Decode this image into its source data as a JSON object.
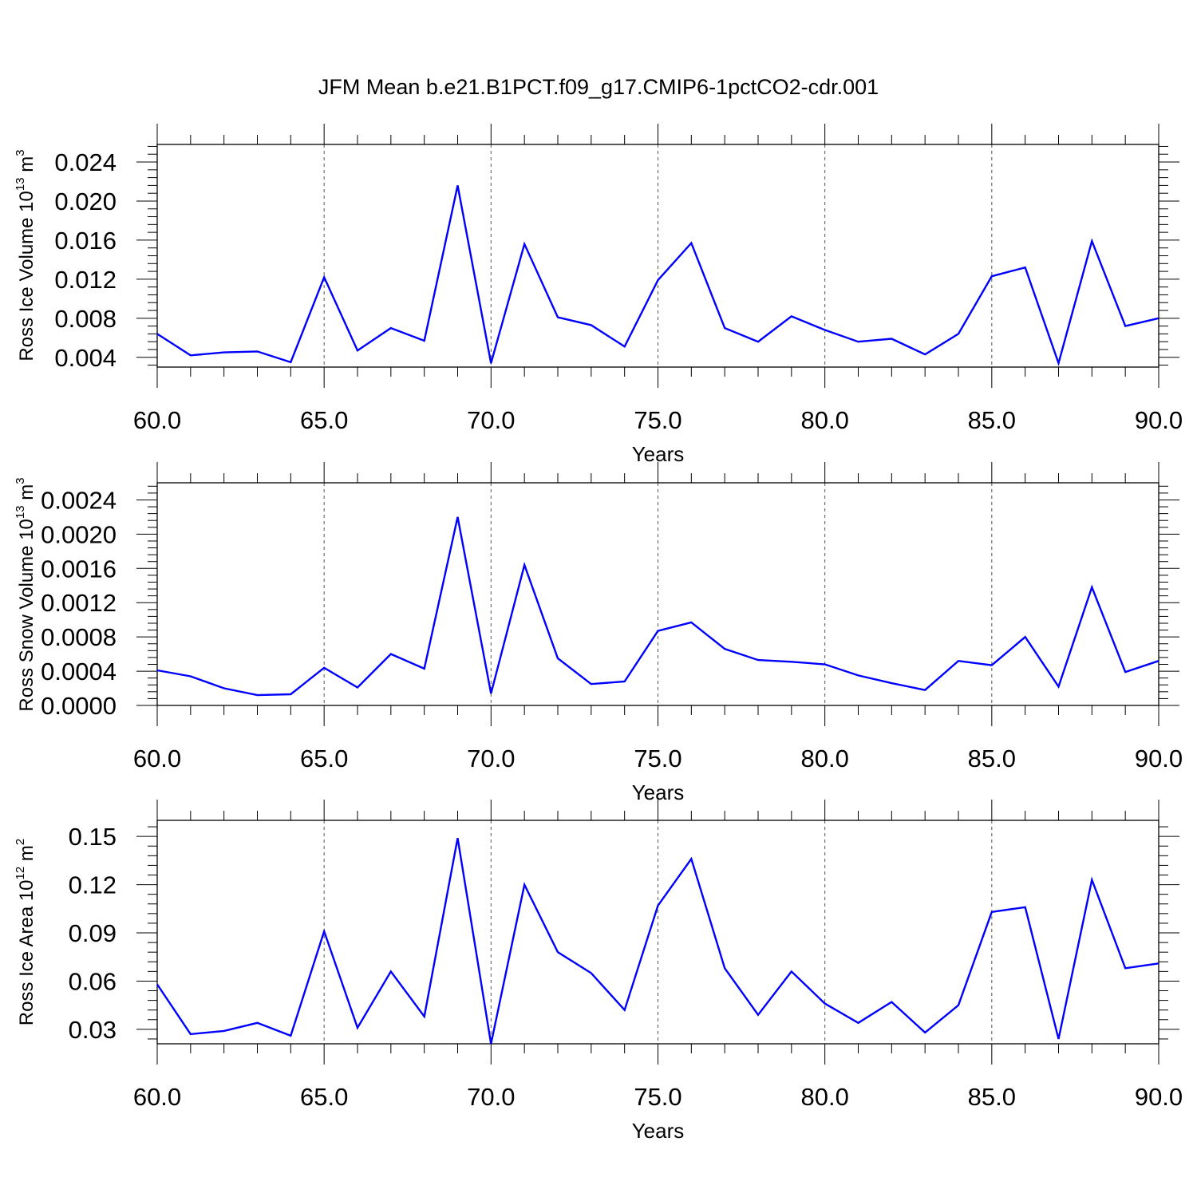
{
  "title": "JFM Mean b.e21.B1PCT.f09_g17.CMIP6-1pctCO2-cdr.001",
  "chart_data": [
    {
      "type": "line",
      "xlabel": "Years",
      "ylabel": "Ross Ice Volume 10",
      "ylabel_exp": "13",
      "ylabel_unit": "m",
      "ylabel_unit_exp": "3",
      "xlim": [
        60,
        90
      ],
      "ylim": [
        0.003,
        0.0258
      ],
      "x_ticks": [
        "60.0",
        "65.0",
        "70.0",
        "75.0",
        "80.0",
        "85.0",
        "90.0"
      ],
      "y_ticks": [
        "0.004",
        "0.008",
        "0.012",
        "0.016",
        "0.020",
        "0.024"
      ],
      "grid": "vertical dashed at x ticks",
      "color": "#0000ff",
      "x": [
        60,
        61,
        62,
        63,
        64,
        65,
        66,
        67,
        68,
        69,
        70,
        71,
        72,
        73,
        74,
        75,
        76,
        77,
        78,
        79,
        80,
        81,
        82,
        83,
        84,
        85,
        86,
        87,
        88,
        89,
        90
      ],
      "values": [
        0.0064,
        0.0042,
        0.0045,
        0.0046,
        0.0035,
        0.0122,
        0.0047,
        0.007,
        0.0057,
        0.0216,
        0.0034,
        0.0156,
        0.0081,
        0.0073,
        0.0051,
        0.0119,
        0.0157,
        0.007,
        0.0056,
        0.0082,
        0.0068,
        0.0056,
        0.0059,
        0.0043,
        0.0064,
        0.0123,
        0.0132,
        0.0034,
        0.0159,
        0.0072,
        0.008
      ]
    },
    {
      "type": "line",
      "xlabel": "Years",
      "ylabel": "Ross Snow Volume 10",
      "ylabel_exp": "13",
      "ylabel_unit": "m",
      "ylabel_unit_exp": "3",
      "xlim": [
        60,
        90
      ],
      "ylim": [
        0.0,
        0.0026
      ],
      "x_ticks": [
        "60.0",
        "65.0",
        "70.0",
        "75.0",
        "80.0",
        "85.0",
        "90.0"
      ],
      "y_ticks": [
        "0.0000",
        "0.0004",
        "0.0008",
        "0.0012",
        "0.0016",
        "0.0020",
        "0.0024"
      ],
      "grid": "vertical dashed at x ticks",
      "color": "#0000ff",
      "x": [
        60,
        61,
        62,
        63,
        64,
        65,
        66,
        67,
        68,
        69,
        70,
        71,
        72,
        73,
        74,
        75,
        76,
        77,
        78,
        79,
        80,
        81,
        82,
        83,
        84,
        85,
        86,
        87,
        88,
        89,
        90
      ],
      "values": [
        0.00041,
        0.00034,
        0.0002,
        0.00012,
        0.00013,
        0.00044,
        0.00021,
        0.0006,
        0.00043,
        0.0022,
        0.00014,
        0.00164,
        0.00055,
        0.00025,
        0.00028,
        0.00087,
        0.00097,
        0.00066,
        0.00053,
        0.00051,
        0.00048,
        0.00035,
        0.00026,
        0.00018,
        0.00052,
        0.00047,
        0.0008,
        0.00022,
        0.00138,
        0.00039,
        0.00052
      ]
    },
    {
      "type": "line",
      "xlabel": "Years",
      "ylabel": "Ross Ice Area 10",
      "ylabel_exp": "12",
      "ylabel_unit": "m",
      "ylabel_unit_exp": "2",
      "xlim": [
        60,
        90
      ],
      "ylim": [
        0.021,
        0.16
      ],
      "x_ticks": [
        "60.0",
        "65.0",
        "70.0",
        "75.0",
        "80.0",
        "85.0",
        "90.0"
      ],
      "y_ticks": [
        "0.03",
        "0.06",
        "0.09",
        "0.12",
        "0.15"
      ],
      "grid": "vertical dashed at x ticks",
      "color": "#0000ff",
      "x": [
        60,
        61,
        62,
        63,
        64,
        65,
        66,
        67,
        68,
        69,
        70,
        71,
        72,
        73,
        74,
        75,
        76,
        77,
        78,
        79,
        80,
        81,
        82,
        83,
        84,
        85,
        86,
        87,
        88,
        89,
        90
      ],
      "values": [
        0.058,
        0.027,
        0.029,
        0.034,
        0.026,
        0.091,
        0.031,
        0.066,
        0.038,
        0.149,
        0.021,
        0.12,
        0.078,
        0.065,
        0.042,
        0.107,
        0.136,
        0.068,
        0.039,
        0.066,
        0.046,
        0.034,
        0.047,
        0.028,
        0.045,
        0.103,
        0.106,
        0.024,
        0.123,
        0.068,
        0.071
      ]
    }
  ]
}
